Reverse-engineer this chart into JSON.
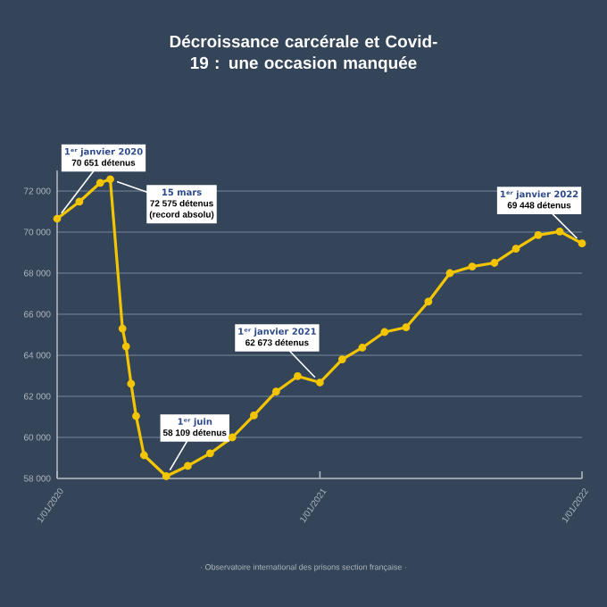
{
  "chart_data": {
    "type": "line",
    "title": "Décroissance carcérale et Covid-19 : une occasion manquée",
    "x": [
      "2020-01-01",
      "2020-02-01",
      "2020-03-01",
      "2020-03-15",
      "2020-04-01",
      "2020-04-06",
      "2020-04-13",
      "2020-04-20",
      "2020-05-01",
      "2020-06-01",
      "2020-07-01",
      "2020-08-01",
      "2020-09-01",
      "2020-10-01",
      "2020-11-01",
      "2020-12-01",
      "2021-01-01",
      "2021-02-01",
      "2021-03-01",
      "2021-04-01",
      "2021-05-01",
      "2021-06-01",
      "2021-07-01",
      "2021-08-01",
      "2021-09-01",
      "2021-10-01",
      "2021-11-01",
      "2021-12-01",
      "2022-01-01"
    ],
    "series": [
      {
        "color": "#f2c500",
        "values": [
          70651,
          71480,
          72400,
          72575,
          65300,
          64430,
          62610,
          61040,
          59130,
          58109,
          58610,
          59220,
          60000,
          61070,
          62230,
          62980,
          62673,
          63800,
          64370,
          65130,
          65360,
          66610,
          68000,
          68320,
          68500,
          69190,
          69850,
          70030,
          69448
        ]
      }
    ],
    "xlim": [
      "2020-01-01",
      "2022-01-01"
    ],
    "xticks": [
      {
        "value": "2020-01-01",
        "label": "1/01/2020"
      },
      {
        "value": "2021-01-01",
        "label": "1/01/2021"
      },
      {
        "value": "2022-01-01",
        "label": "1/01/2022"
      }
    ],
    "ylim": [
      58000,
      73000
    ],
    "yticks": [
      {
        "value": 58000,
        "label": "58 000"
      },
      {
        "value": 60000,
        "label": "60 000"
      },
      {
        "value": 62000,
        "label": "62 000"
      },
      {
        "value": 64000,
        "label": "64 000"
      },
      {
        "value": 66000,
        "label": "66 000"
      },
      {
        "value": 68000,
        "label": "68 000"
      },
      {
        "value": 70000,
        "label": "70 000"
      },
      {
        "value": 72000,
        "label": "72 000"
      }
    ],
    "grid": "y",
    "marker": "circle",
    "line_style": "solid",
    "annotations": [
      {
        "text": "1ᵉʳ janvier 2020",
        "x": "2020-01-01",
        "y": 70651
      },
      {
        "text": "70 651 détenus",
        "x": "2020-01-01",
        "y": 70651
      },
      {
        "text": "15 mars",
        "x": "2020-03-15",
        "y": 72575
      },
      {
        "text": "72 575 détenus",
        "x": "2020-03-15",
        "y": 72575
      },
      {
        "text": "(record absolu)",
        "x": "2020-03-15",
        "y": 72575
      },
      {
        "text": "1ᵉʳ juin",
        "x": "2020-06-01",
        "y": 58109
      },
      {
        "text": "58 109 détenus",
        "x": "2020-06-01",
        "y": 58109
      },
      {
        "text": "1ᵉʳ janvier 2021",
        "x": "2021-01-01",
        "y": 62673
      },
      {
        "text": "62 673 détenus",
        "x": "2021-01-01",
        "y": 62673
      },
      {
        "text": "1ᵉʳ janvier 2022",
        "x": "2022-01-01",
        "y": 69448
      },
      {
        "text": "69 448 détenus",
        "x": "2022-01-01",
        "y": 69448
      },
      "· Observatoire international des prisons section française ·"
    ]
  }
}
